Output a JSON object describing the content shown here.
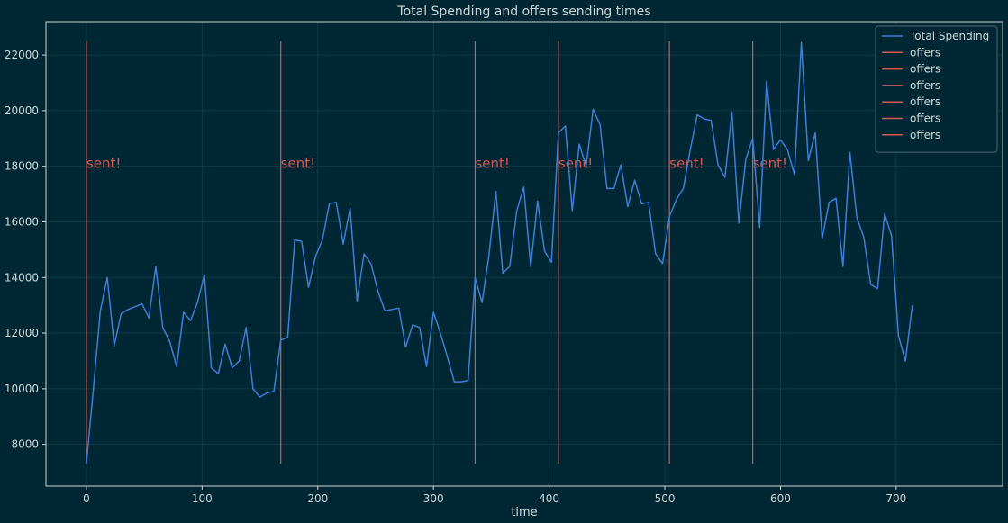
{
  "chart_data": {
    "type": "line",
    "title": "Total Spending and offers sending times",
    "xlabel": "time",
    "ylabel": "",
    "xlim": [
      -35,
      792
    ],
    "ylim": [
      6500,
      23200
    ],
    "xticks": [
      0,
      100,
      200,
      300,
      400,
      500,
      600,
      700
    ],
    "yticks": [
      8000,
      10000,
      12000,
      14000,
      16000,
      18000,
      20000,
      22000
    ],
    "grid": true,
    "legend_position": "top-right",
    "colors": {
      "spending": "#3d7fd6",
      "offers": "#d45a55",
      "background": "#002733",
      "grid": "#0f3b47"
    },
    "series": [
      {
        "name": "Total Spending",
        "x": [
          0,
          6,
          12,
          18,
          24,
          30,
          36,
          42,
          48,
          54,
          60,
          66,
          72,
          78,
          84,
          90,
          96,
          102,
          108,
          114,
          120,
          126,
          132,
          138,
          144,
          150,
          156,
          162,
          168,
          174,
          180,
          186,
          192,
          198,
          204,
          210,
          216,
          222,
          228,
          234,
          240,
          246,
          252,
          258,
          264,
          270,
          276,
          282,
          288,
          294,
          300,
          306,
          312,
          318,
          324,
          330,
          336,
          342,
          348,
          354,
          360,
          366,
          372,
          378,
          384,
          390,
          396,
          402,
          408,
          414,
          420,
          426,
          432,
          438,
          444,
          450,
          456,
          462,
          468,
          474,
          480,
          486,
          492,
          498,
          504,
          510,
          516,
          522,
          528,
          534,
          540,
          546,
          552,
          558,
          564,
          570,
          576,
          582,
          588,
          594,
          600,
          606,
          612,
          618,
          624,
          630,
          636,
          642,
          648,
          654,
          660,
          666,
          672,
          678,
          684,
          690,
          696,
          702,
          708,
          714
        ],
        "values": [
          7300,
          10000,
          12800,
          14000,
          11550,
          12700,
          12850,
          12950,
          13050,
          12550,
          14400,
          12200,
          11700,
          10800,
          12750,
          12450,
          13100,
          14100,
          10750,
          10550,
          11600,
          10750,
          11000,
          12200,
          10000,
          9700,
          9850,
          9900,
          11750,
          11850,
          15350,
          15300,
          13650,
          14750,
          15350,
          16650,
          16700,
          15200,
          16500,
          13150,
          14850,
          14500,
          13500,
          12800,
          12850,
          12900,
          11500,
          12300,
          12200,
          10800,
          12750,
          12000,
          11150,
          10250,
          10250,
          10300,
          14000,
          13100,
          14800,
          17100,
          14150,
          14400,
          16400,
          17250,
          14400,
          16750,
          14950,
          14550,
          19200,
          19450,
          16400,
          18800,
          18000,
          20050,
          19500,
          17200,
          17200,
          18050,
          16550,
          17500,
          16650,
          16700,
          14850,
          14500,
          16200,
          16800,
          17200,
          18600,
          19850,
          19700,
          19650,
          18050,
          17600,
          19950,
          15950,
          18250,
          19000,
          15800,
          21050,
          18600,
          18950,
          18600,
          17700,
          22450,
          18200,
          19200,
          15400,
          16700,
          16850,
          14400,
          18500,
          16150,
          15450,
          13750,
          13600,
          16300,
          15500,
          11900,
          11000,
          13000
        ]
      }
    ],
    "offers": {
      "x": [
        0,
        168,
        336,
        408,
        504,
        576
      ],
      "y_range": [
        7300,
        22500
      ],
      "label": "sent!",
      "label_y": 18100,
      "legend_names": [
        "offers",
        "offers",
        "offers",
        "offers",
        "offers",
        "offers"
      ]
    }
  }
}
